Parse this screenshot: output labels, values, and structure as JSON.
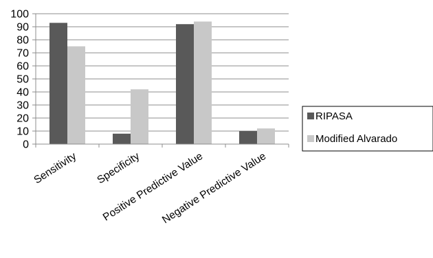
{
  "chart_data": {
    "type": "bar",
    "title": "",
    "xlabel": "",
    "ylabel": "",
    "categories": [
      "Sensitivity",
      "Specificity",
      "Positive Predictive Value",
      "Negative Predictive Value"
    ],
    "series": [
      {
        "name": "RIPASA",
        "values": [
          93,
          8,
          92,
          10
        ],
        "color": "#595959"
      },
      {
        "name": "Modified Alvarado",
        "values": [
          75,
          42,
          94,
          12
        ],
        "color": "#c8c8c8"
      }
    ],
    "ylim": [
      0,
      100
    ],
    "yticks": [
      "0",
      "10",
      "20",
      "30",
      "40",
      "50",
      "60",
      "70",
      "80",
      "90",
      "100"
    ],
    "grid": true,
    "legend_position": "right"
  }
}
